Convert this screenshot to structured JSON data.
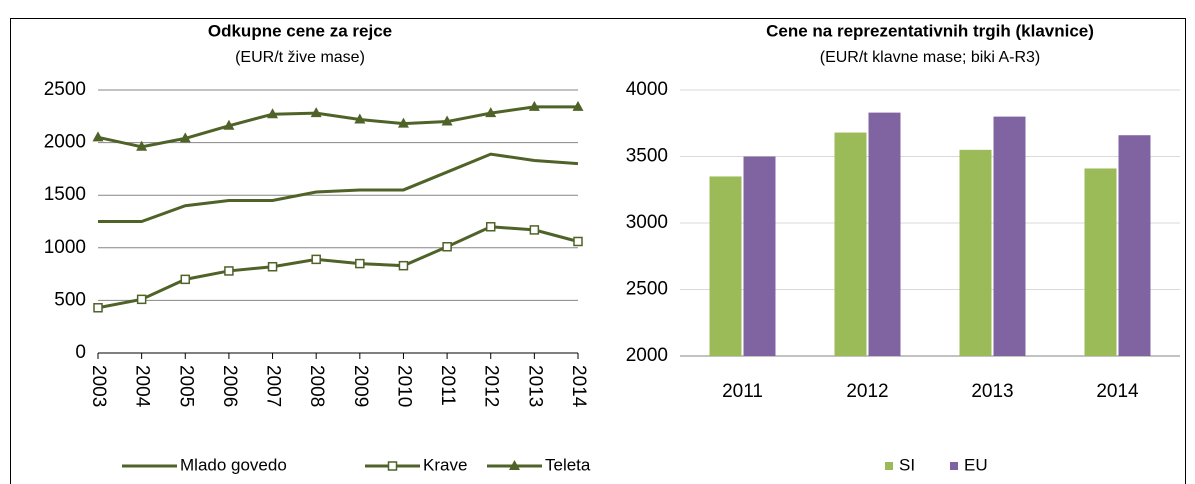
{
  "chart_data": [
    {
      "type": "line",
      "title": "Odkupne cene za rejce",
      "subtitle": "(EUR/t žive mase)",
      "categories": [
        "2003",
        "2004",
        "2005",
        "2006",
        "2007",
        "2008",
        "2009",
        "2010",
        "2011",
        "2012",
        "2013",
        "2014"
      ],
      "series": [
        {
          "name": "Mlado govedo",
          "color": "#4f6228",
          "marker": "none",
          "values": [
            1250,
            1250,
            1400,
            1450,
            1450,
            1530,
            1550,
            1550,
            1720,
            1890,
            1830,
            1800
          ]
        },
        {
          "name": "Krave",
          "color": "#4f6228",
          "marker": "square",
          "values": [
            430,
            510,
            700,
            780,
            820,
            890,
            850,
            830,
            1010,
            1200,
            1170,
            1060
          ]
        },
        {
          "name": "Teleta",
          "color": "#4f6228",
          "marker": "triangle",
          "values": [
            2050,
            1960,
            2040,
            2160,
            2270,
            2280,
            2220,
            2180,
            2200,
            2280,
            2340,
            2340
          ]
        }
      ],
      "ylim": [
        0,
        2500
      ],
      "yticks": [
        0,
        500,
        1000,
        1500,
        2000,
        2500
      ],
      "grid": true,
      "legend": "bottom"
    },
    {
      "type": "bar",
      "title": "Cene na reprezentativnih trgih (klavnice)",
      "subtitle": "(EUR/t klavne mase; biki A-R3)",
      "categories": [
        "2011",
        "2012",
        "2013",
        "2014"
      ],
      "series": [
        {
          "name": "SI",
          "color": "#9bbb59",
          "values": [
            3350,
            3680,
            3550,
            3410
          ]
        },
        {
          "name": "EU",
          "color": "#8064a2",
          "values": [
            3500,
            3830,
            3800,
            3660
          ]
        }
      ],
      "ylim": [
        2000,
        4000
      ],
      "yticks": [
        2000,
        2500,
        3000,
        3500,
        4000
      ],
      "grid": true,
      "legend": "bottom"
    }
  ]
}
